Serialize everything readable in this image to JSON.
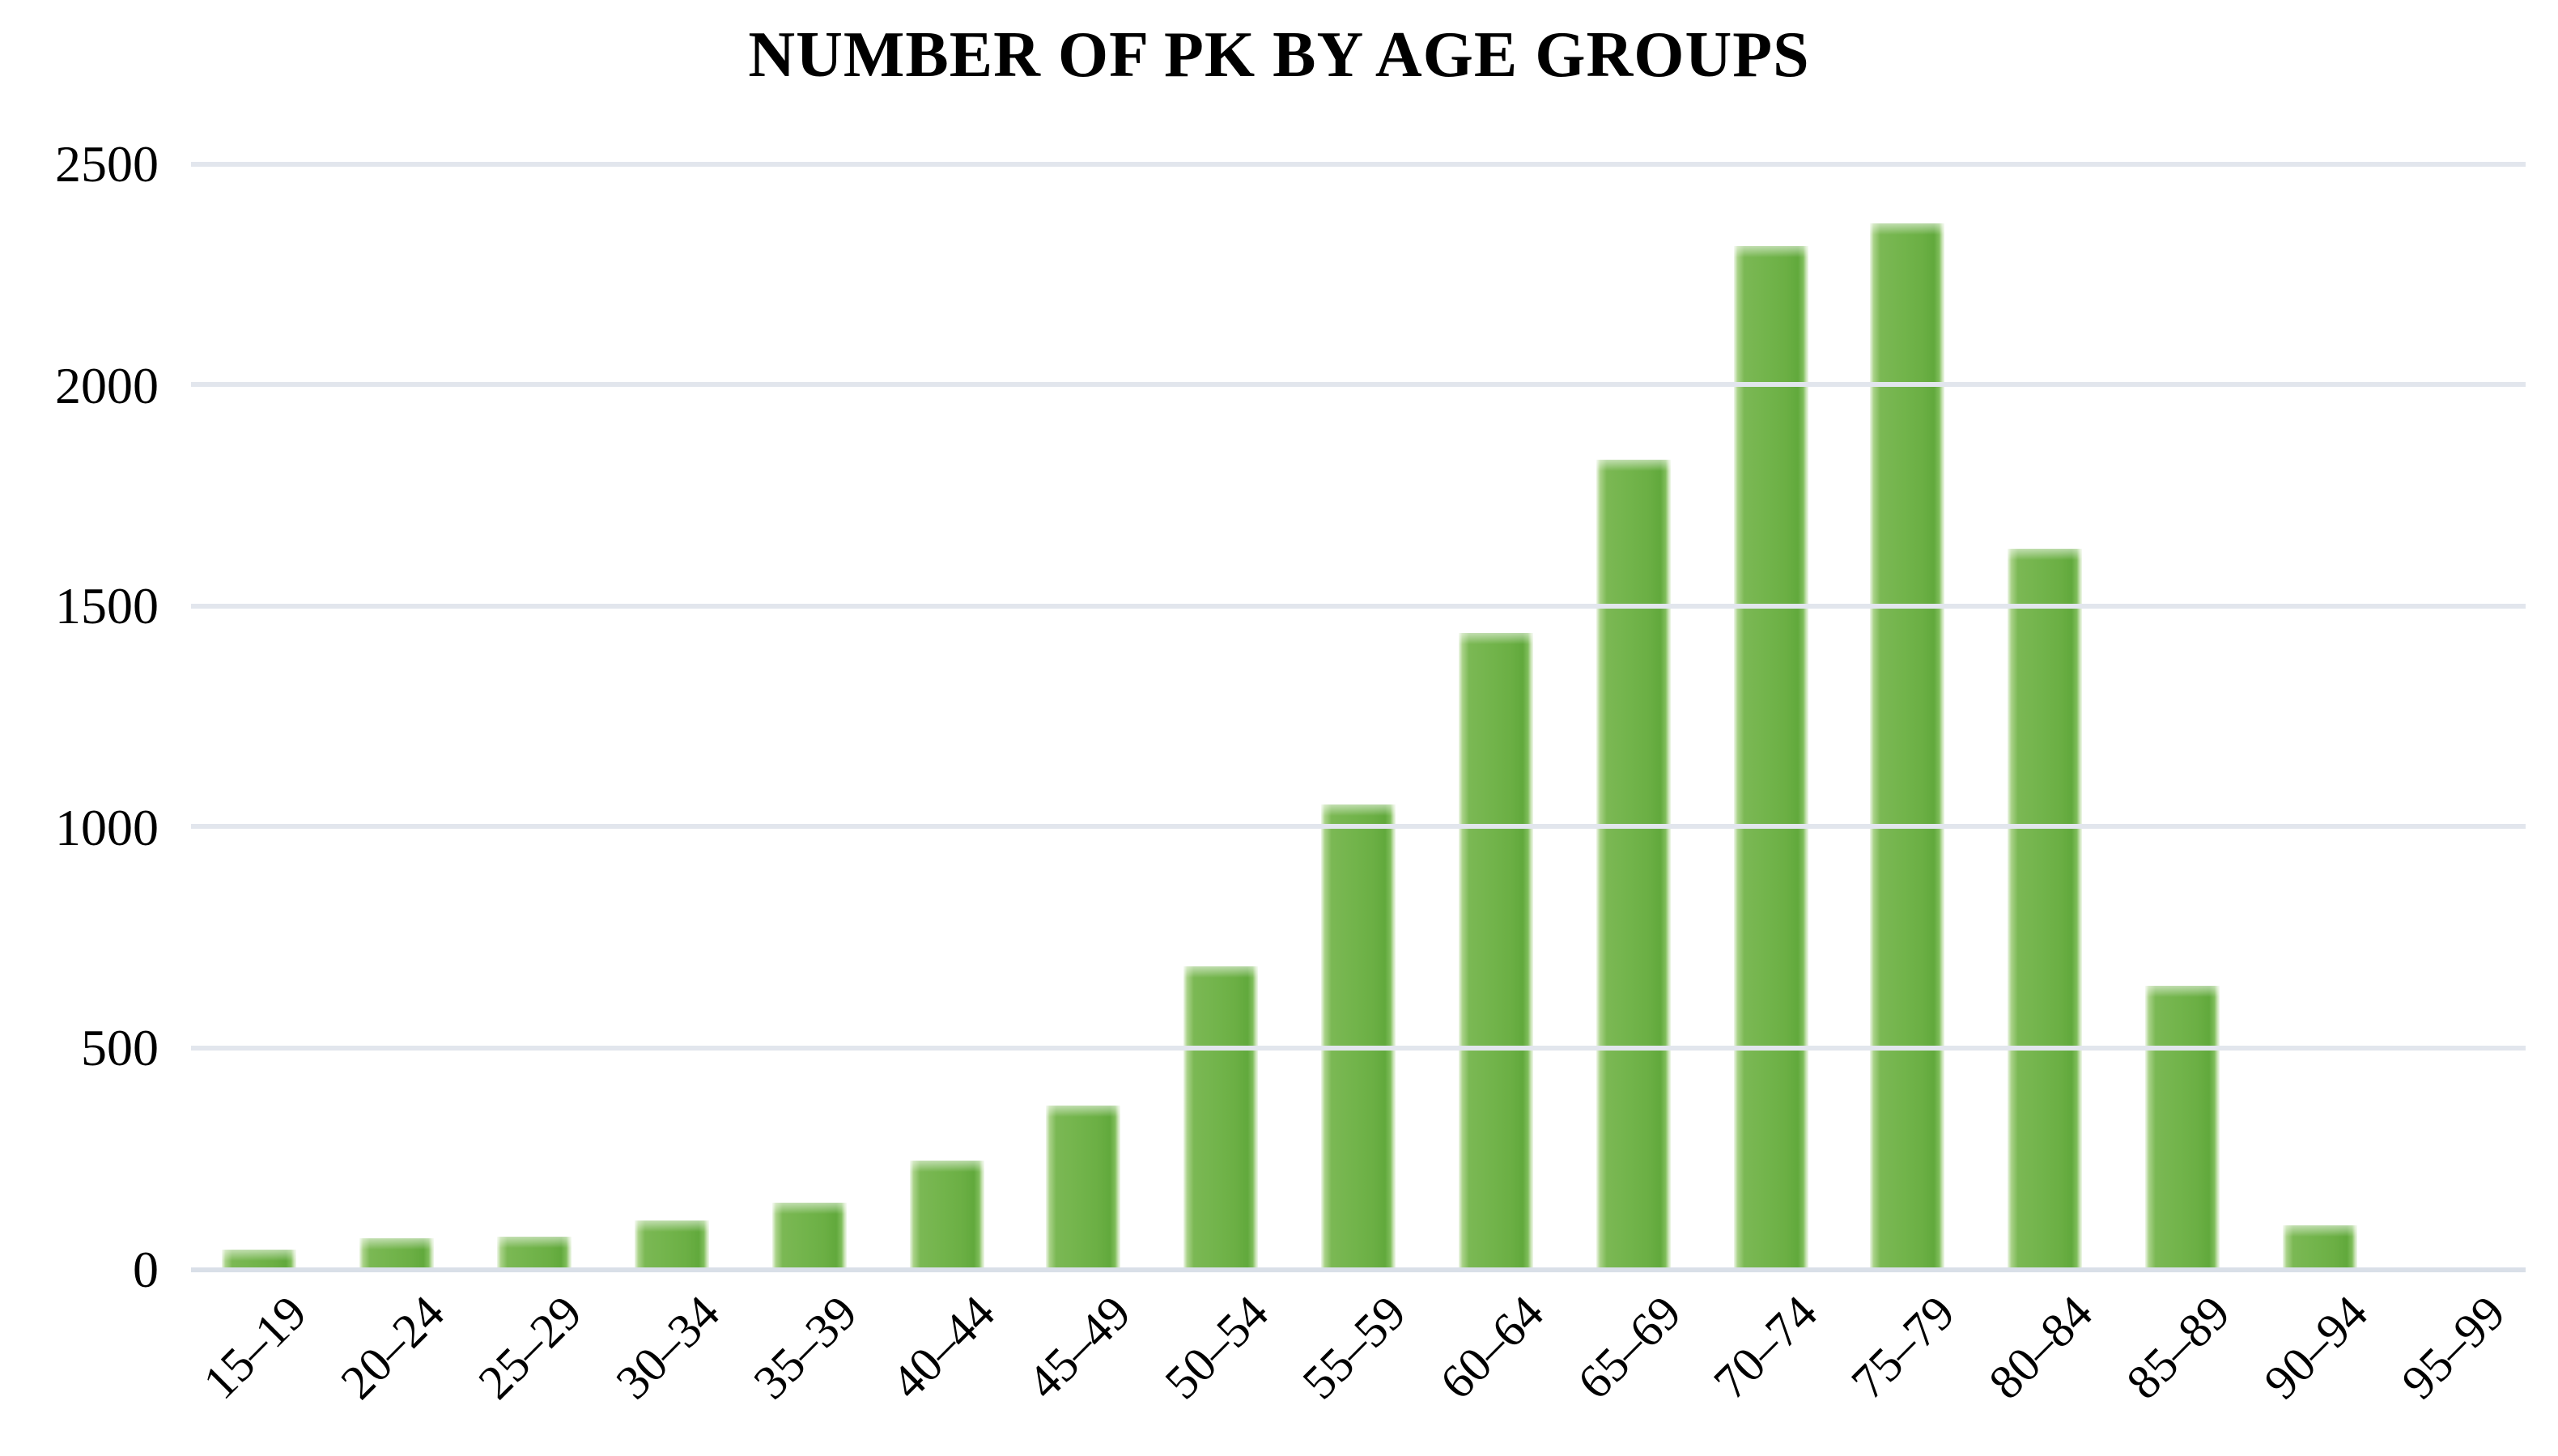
{
  "chart_data": {
    "type": "bar",
    "title": "NUMBER OF PK BY AGE GROUPS",
    "categories": [
      "15–19",
      "20–24",
      "25–29",
      "30–34",
      "35–39",
      "40–44",
      "45–49",
      "50–54",
      "55–59",
      "60–64",
      "65–69",
      "70–74",
      "75–79",
      "80–84",
      "85–89",
      "90–94",
      "95–99"
    ],
    "values": [
      45,
      70,
      75,
      110,
      150,
      245,
      370,
      685,
      1050,
      1440,
      1830,
      2315,
      2365,
      1630,
      640,
      100,
      0
    ],
    "xlabel": "",
    "ylabel": "",
    "ylim": [
      0,
      2500
    ],
    "yticks": [
      0,
      500,
      1000,
      1500,
      2000,
      2500
    ],
    "grid": "horizontal gridlines on, no vertical gridlines",
    "legend_position": "none",
    "x_tick_rotation_deg": 45,
    "colors": {
      "bar_main": "#6BAF44",
      "bar_dark_edge": "#61A93C",
      "bar_light_edge": "#A9D288",
      "bar_pale_edge": "#EFF7E9",
      "gridline": "#E2E6ED",
      "axis_line": "#D9DFE8",
      "text": "#000000",
      "background": "#FFFFFF"
    }
  }
}
